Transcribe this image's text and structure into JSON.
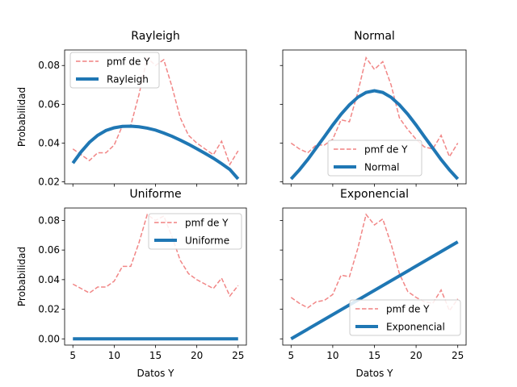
{
  "chart_data": [
    {
      "type": "line",
      "title": "Rayleigh",
      "xlabel": "",
      "ylabel": "Probabilidad",
      "xlim": [
        4.0,
        26.0
      ],
      "ylim": [
        0.019,
        0.088
      ],
      "xticks": [
        5,
        10,
        15,
        20,
        25
      ],
      "xtick_labels_shown": false,
      "yticks": [
        0.02,
        0.04,
        0.06,
        0.08
      ],
      "ytick_labels": [
        "0.02",
        "0.04",
        "0.06",
        "0.08"
      ],
      "ytick_labels_shown": true,
      "legend_position": "upper-left",
      "series": [
        {
          "name": "pmf de Y",
          "style": "dashed",
          "color": "#f08080",
          "x": [
            5,
            6,
            7,
            8,
            9,
            10,
            11,
            12,
            13,
            14,
            15,
            16,
            17,
            18,
            19,
            20,
            21,
            22,
            23,
            24,
            25
          ],
          "y": [
            0.037,
            0.034,
            0.031,
            0.035,
            0.035,
            0.039,
            0.049,
            0.049,
            0.065,
            0.084,
            0.08,
            0.083,
            0.069,
            0.053,
            0.044,
            0.04,
            0.037,
            0.034,
            0.041,
            0.029,
            0.036
          ]
        },
        {
          "name": "Rayleigh",
          "style": "solid",
          "color": "#1f77b4",
          "x": [
            5,
            6,
            7,
            8,
            9,
            10,
            11,
            12,
            13,
            14,
            15,
            16,
            17,
            18,
            19,
            20,
            21,
            22,
            23,
            24,
            25
          ],
          "y": [
            0.0297,
            0.0355,
            0.0404,
            0.044,
            0.0465,
            0.0479,
            0.0486,
            0.0487,
            0.0484,
            0.0477,
            0.0467,
            0.0452,
            0.0435,
            0.0415,
            0.0394,
            0.0371,
            0.0347,
            0.0322,
            0.0294,
            0.0264,
            0.0215
          ]
        }
      ]
    },
    {
      "type": "line",
      "title": "Normal",
      "xlabel": "",
      "ylabel": "",
      "xlim": [
        4.0,
        26.0
      ],
      "ylim": [
        0.019,
        0.088
      ],
      "xticks": [
        5,
        10,
        15,
        20,
        25
      ],
      "xtick_labels_shown": false,
      "yticks": [
        0.02,
        0.04,
        0.06,
        0.08
      ],
      "ytick_labels_shown": false,
      "legend_position": "lower-center",
      "series": [
        {
          "name": "pmf de Y",
          "style": "dashed",
          "color": "#f08080",
          "x": [
            5,
            6,
            7,
            8,
            9,
            10,
            11,
            12,
            13,
            14,
            15,
            16,
            17,
            18,
            19,
            20,
            21,
            22,
            23,
            24,
            25
          ],
          "y": [
            0.04,
            0.037,
            0.035,
            0.039,
            0.039,
            0.042,
            0.052,
            0.051,
            0.066,
            0.084,
            0.078,
            0.082,
            0.07,
            0.053,
            0.047,
            0.042,
            0.038,
            0.037,
            0.044,
            0.033,
            0.04
          ]
        },
        {
          "name": "Normal",
          "style": "solid",
          "color": "#1f77b4",
          "x": [
            5,
            6,
            7,
            8,
            9,
            10,
            11,
            12,
            13,
            14,
            15,
            16,
            17,
            18,
            19,
            20,
            21,
            22,
            23,
            24,
            25
          ],
          "y": [
            0.0215,
            0.0262,
            0.0315,
            0.0374,
            0.0433,
            0.0493,
            0.0549,
            0.0597,
            0.0636,
            0.0661,
            0.067,
            0.0661,
            0.0636,
            0.0597,
            0.0549,
            0.0493,
            0.0433,
            0.0374,
            0.0315,
            0.0262,
            0.0215
          ]
        }
      ]
    },
    {
      "type": "line",
      "title": "Uniforme",
      "xlabel": "Datos Y",
      "ylabel": "Probabilidad",
      "xlim": [
        4.0,
        26.0
      ],
      "ylim": [
        -0.0042,
        0.0884
      ],
      "xticks": [
        5,
        10,
        15,
        20,
        25
      ],
      "xtick_labels": [
        "5",
        "10",
        "15",
        "20",
        "25"
      ],
      "xtick_labels_shown": true,
      "yticks": [
        0.0,
        0.02,
        0.04,
        0.06,
        0.08
      ],
      "ytick_labels": [
        "0.00",
        "0.02",
        "0.04",
        "0.06",
        "0.08"
      ],
      "ytick_labels_shown": true,
      "legend_position": "upper-right",
      "series": [
        {
          "name": "pmf de Y",
          "style": "dashed",
          "color": "#f08080",
          "x": [
            5,
            6,
            7,
            8,
            9,
            10,
            11,
            12,
            13,
            14,
            15,
            16,
            17,
            18,
            19,
            20,
            21,
            22,
            23,
            24,
            25
          ],
          "y": [
            0.037,
            0.034,
            0.031,
            0.035,
            0.035,
            0.039,
            0.049,
            0.049,
            0.065,
            0.084,
            0.08,
            0.083,
            0.069,
            0.053,
            0.044,
            0.04,
            0.037,
            0.034,
            0.041,
            0.029,
            0.036
          ]
        },
        {
          "name": "Uniforme",
          "style": "solid",
          "color": "#1f77b4",
          "x": [
            5,
            25
          ],
          "y": [
            0.0,
            0.0
          ]
        }
      ]
    },
    {
      "type": "line",
      "title": "Exponencial",
      "xlabel": "Datos Y",
      "ylabel": "",
      "xlim": [
        4.0,
        26.0
      ],
      "ylim": [
        -0.0042,
        0.0884
      ],
      "xticks": [
        5,
        10,
        15,
        20,
        25
      ],
      "xtick_labels": [
        "5",
        "10",
        "15",
        "20",
        "25"
      ],
      "xtick_labels_shown": true,
      "yticks": [
        0.0,
        0.02,
        0.04,
        0.06,
        0.08
      ],
      "ytick_labels_shown": false,
      "legend_position": "lower-right",
      "series": [
        {
          "name": "pmf de Y",
          "style": "dashed",
          "color": "#f08080",
          "x": [
            5,
            6,
            7,
            8,
            9,
            10,
            11,
            12,
            13,
            14,
            15,
            16,
            17,
            18,
            19,
            20,
            21,
            22,
            23,
            24,
            25
          ],
          "y": [
            0.028,
            0.024,
            0.021,
            0.025,
            0.026,
            0.03,
            0.043,
            0.042,
            0.061,
            0.084,
            0.077,
            0.081,
            0.064,
            0.044,
            0.032,
            0.028,
            0.025,
            0.024,
            0.033,
            0.019,
            0.027
          ]
        },
        {
          "name": "Exponencial",
          "style": "solid",
          "color": "#1f77b4",
          "x": [
            5,
            25
          ],
          "y": [
            0.0,
            0.0655
          ]
        }
      ]
    }
  ]
}
